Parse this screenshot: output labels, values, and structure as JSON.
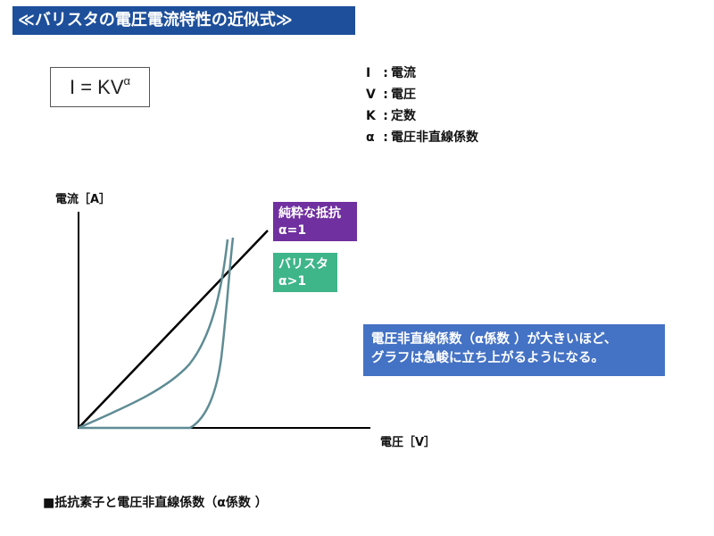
{
  "title": "≪バリスタの電圧電流特性の近似式≫",
  "formula": {
    "base": "I = KV",
    "exponent": "α"
  },
  "legend": [
    {
      "symbol": "I",
      "meaning": "電流"
    },
    {
      "symbol": "V",
      "meaning": "電圧"
    },
    {
      "symbol": "K",
      "meaning": "定数"
    },
    {
      "symbol": "α",
      "meaning": "電圧非直線係数"
    }
  ],
  "legend_colon": ":",
  "graph": {
    "y_axis_label": "電流［A］",
    "x_axis_label": "電圧［V］",
    "curves": [
      {
        "name": "linear",
        "color": "#000000"
      },
      {
        "name": "varistor-mid",
        "color": "#5f8c94"
      },
      {
        "name": "varistor-steep",
        "color": "#5f8c94"
      }
    ]
  },
  "tags": {
    "resistor": {
      "line1": "純粋な抵抗",
      "line2": "α=1",
      "color": "#7030a0"
    },
    "varistor": {
      "line1": "バリスタ",
      "line2": "α>1",
      "color": "#3fb58a"
    }
  },
  "note": {
    "line1": "電圧非直線係数（α係数 ）が大きいほど、",
    "line2": "グラフは急峻に立ち上がるようになる。",
    "color": "#4472c4"
  },
  "footer": "■抵抗素子と電圧非直線係数（α係数 ）",
  "colors": {
    "title_bg": "#1d4f9a"
  }
}
